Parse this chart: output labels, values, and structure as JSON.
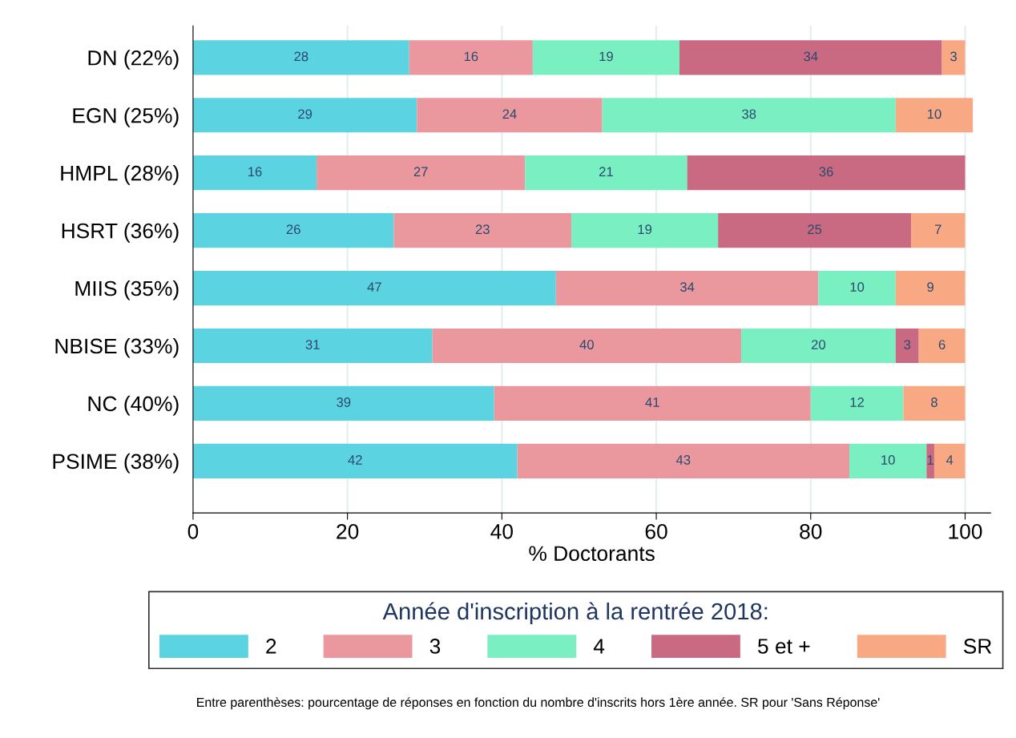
{
  "chart_data": {
    "type": "bar",
    "orientation": "horizontal",
    "stacked": true,
    "xlabel": "% Doctorants",
    "legend_title": "Année d'inscription à la rentrée 2018:",
    "categories": [
      "DN (22%)",
      "EGN (25%)",
      "HMPL (28%)",
      "HSRT (36%)",
      "MIIS (35%)",
      "NBISE (33%)",
      "NC (40%)",
      "PSIME (38%)"
    ],
    "series": [
      {
        "name": "2",
        "color": "#5bd3e0",
        "values": [
          28,
          29,
          16,
          26,
          47,
          31,
          39,
          42
        ]
      },
      {
        "name": "3",
        "color": "#ea979e",
        "values": [
          16,
          24,
          27,
          23,
          34,
          40,
          41,
          43
        ]
      },
      {
        "name": "4",
        "color": "#7af0c2",
        "values": [
          19,
          38,
          21,
          19,
          10,
          20,
          12,
          10
        ]
      },
      {
        "name": "5 et +",
        "color": "#c96a82",
        "values": [
          34,
          null,
          36,
          25,
          null,
          3,
          null,
          1
        ]
      },
      {
        "name": "SR",
        "color": "#f8a984",
        "values": [
          3,
          10,
          null,
          7,
          9,
          6,
          8,
          4
        ]
      }
    ],
    "xlim": [
      0,
      103.3
    ],
    "xticks": [
      0,
      20,
      40,
      60,
      80,
      100
    ],
    "grid": "x",
    "legend": "bottom",
    "data_labels": true,
    "annotations": [
      "Entre parenthèses: pourcentage de réponses en fonction du nombre d'inscrits hors 1ère année. SR pour 'Sans Réponse'"
    ]
  }
}
